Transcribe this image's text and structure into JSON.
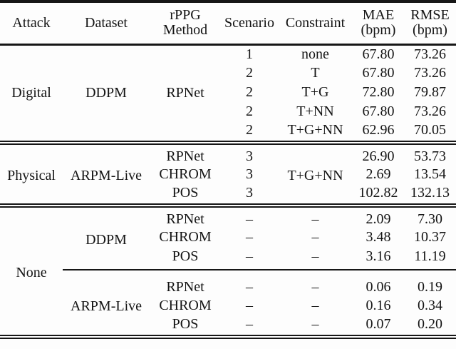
{
  "table": {
    "header": {
      "attack": "Attack",
      "dataset": "Dataset",
      "method_line1": "rPPG",
      "method_line2": "Method",
      "scenario": "Scenario",
      "constraint": "Constraint",
      "mae_line1": "MAE",
      "mae_line2": "(bpm)",
      "rmse_line1": "RMSE",
      "rmse_line2": "(bpm)"
    },
    "digital": {
      "attack": "Digital",
      "dataset": "DDPM",
      "method": "RPNet",
      "rows": [
        {
          "scenario": "1",
          "constraint": "none",
          "mae": "67.80",
          "rmse": "73.26"
        },
        {
          "scenario": "2",
          "constraint": "T",
          "mae": "67.80",
          "rmse": "73.26"
        },
        {
          "scenario": "2",
          "constraint": "T+G",
          "mae": "72.80",
          "rmse": "79.87"
        },
        {
          "scenario": "2",
          "constraint": "T+NN",
          "mae": "67.80",
          "rmse": "73.26"
        },
        {
          "scenario": "2",
          "constraint": "T+G+NN",
          "mae": "62.96",
          "rmse": "70.05"
        }
      ]
    },
    "physical": {
      "attack": "Physical",
      "dataset": "ARPM-Live",
      "constraint": "T+G+NN",
      "rows": [
        {
          "method": "RPNet",
          "scenario": "3",
          "mae": "26.90",
          "rmse": "53.73"
        },
        {
          "method": "CHROM",
          "scenario": "3",
          "mae": "2.69",
          "rmse": "13.54"
        },
        {
          "method": "POS",
          "scenario": "3",
          "mae": "102.82",
          "rmse": "132.13"
        }
      ]
    },
    "none": {
      "attack": "None",
      "ddpm": {
        "dataset": "DDPM",
        "rows": [
          {
            "method": "RPNet",
            "scenario": "–",
            "constraint": "–",
            "mae": "2.09",
            "rmse": "7.30"
          },
          {
            "method": "CHROM",
            "scenario": "–",
            "constraint": "–",
            "mae": "3.48",
            "rmse": "10.37"
          },
          {
            "method": "POS",
            "scenario": "–",
            "constraint": "–",
            "mae": "3.16",
            "rmse": "11.19"
          }
        ]
      },
      "arpm": {
        "dataset": "ARPM-Live",
        "rows": [
          {
            "method": "RPNet",
            "scenario": "–",
            "constraint": "–",
            "mae": "0.06",
            "rmse": "0.19"
          },
          {
            "method": "CHROM",
            "scenario": "–",
            "constraint": "–",
            "mae": "0.16",
            "rmse": "0.34"
          },
          {
            "method": "POS",
            "scenario": "–",
            "constraint": "–",
            "mae": "0.07",
            "rmse": "0.20"
          }
        ]
      }
    },
    "colors": {
      "rule": "#161616",
      "text": "#141414",
      "background": "#fdfdfd"
    }
  }
}
